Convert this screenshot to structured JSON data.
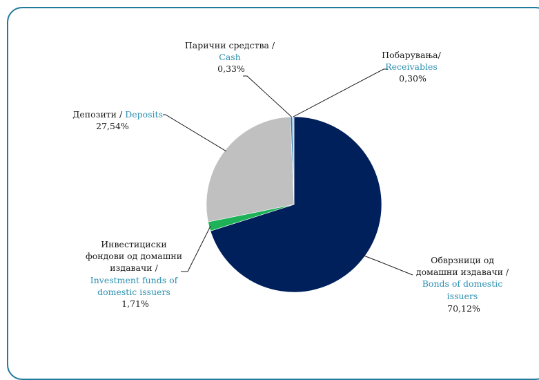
{
  "chart_data": {
    "type": "pie",
    "title": "",
    "slices": [
      {
        "label_mk": "Обврзници од домашни издавачи /",
        "label_en": "Bonds of domestic issuers",
        "value": 70.12,
        "value_text": "70,12%",
        "color": "#00205b"
      },
      {
        "label_mk": "Инвестициски фондови од домашни издавачи /",
        "label_en": "Investment funds of domestic issuers",
        "value": 1.71,
        "value_text": "1,71%",
        "color": "#1db257"
      },
      {
        "label_mk": "Депозити /",
        "label_en": "Deposits",
        "value": 27.54,
        "value_text": "27,54%",
        "color": "#c0c0c0"
      },
      {
        "label_mk": "Парични средства /",
        "label_en": "Cash",
        "value": 0.33,
        "value_text": "0,33%",
        "color": "#1f7ab8"
      },
      {
        "label_mk": "Побарувања/",
        "label_en": "Receivables",
        "value": 0.3,
        "value_text": "0,30%",
        "color": "#a9d4ee"
      }
    ]
  }
}
